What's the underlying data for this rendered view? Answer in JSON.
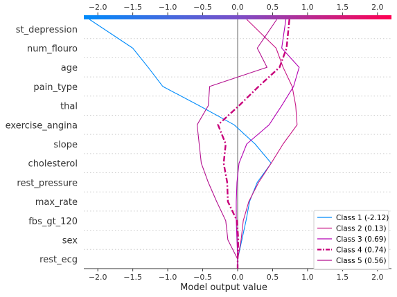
{
  "chart_data": {
    "type": "line",
    "title": "",
    "xlabel": "Model output value",
    "ylabel": "",
    "xlim": [
      -2.2,
      2.2
    ],
    "xticks": [
      "−2.0",
      "−1.5",
      "−1.0",
      "−0.5",
      "0.0",
      "0.5",
      "1.0",
      "1.5",
      "2.0"
    ],
    "xtick_values": [
      -2.0,
      -1.5,
      -1.0,
      -0.5,
      0.0,
      0.5,
      1.0,
      1.5,
      2.0
    ],
    "base_value": 0.0,
    "colorbar": {
      "from": "#008bfb",
      "to": "#ff0052",
      "range": [
        -2.2,
        2.2
      ]
    },
    "features": [
      "st_depression",
      "num_flouro",
      "age",
      "pain_type",
      "thal",
      "exercise_angina",
      "slope",
      "cholesterol",
      "rest_pressure",
      "max_rate",
      "fbs_gt_120",
      "sex",
      "rest_ecg"
    ],
    "legend_position": "lower-right",
    "series": [
      {
        "name": "Class 1 (-2.12)",
        "color": "#008bfb",
        "dash": "solid",
        "values": [
          -2.12,
          -1.5,
          -1.28,
          -1.07,
          -0.55,
          -0.05,
          0.25,
          0.48,
          0.28,
          0.17,
          0.12,
          0.06,
          0.0
        ]
      },
      {
        "name": "Class 2 (0.13)",
        "color": "#c71585",
        "dash": "solid",
        "values": [
          0.13,
          0.55,
          0.65,
          0.78,
          0.83,
          0.85,
          0.65,
          0.48,
          0.3,
          0.16,
          0.08,
          0.05,
          0.0
        ]
      },
      {
        "name": "Class 3 (0.69)",
        "color": "#b300b3",
        "dash": "solid",
        "values": [
          0.69,
          0.63,
          0.88,
          0.8,
          0.63,
          0.45,
          0.13,
          0.02,
          -0.01,
          -0.02,
          -0.02,
          -0.01,
          0.0
        ]
      },
      {
        "name": "Class 4 (0.74)",
        "color": "#c8007a",
        "dash": "dashdot",
        "values": [
          0.74,
          0.7,
          0.6,
          0.3,
          0.02,
          -0.28,
          -0.17,
          -0.2,
          -0.15,
          -0.14,
          -0.01,
          0.01,
          0.0
        ]
      },
      {
        "name": "Class 5 (0.56)",
        "color": "#b3108f",
        "dash": "solid",
        "values": [
          0.56,
          0.28,
          0.42,
          -0.4,
          -0.42,
          -0.58,
          -0.55,
          -0.52,
          -0.42,
          -0.3,
          -0.17,
          -0.14,
          0.0
        ]
      }
    ],
    "base_point": 0.0,
    "top_points": [
      -2.12,
      0.13,
      0.69,
      0.74,
      0.56
    ]
  }
}
